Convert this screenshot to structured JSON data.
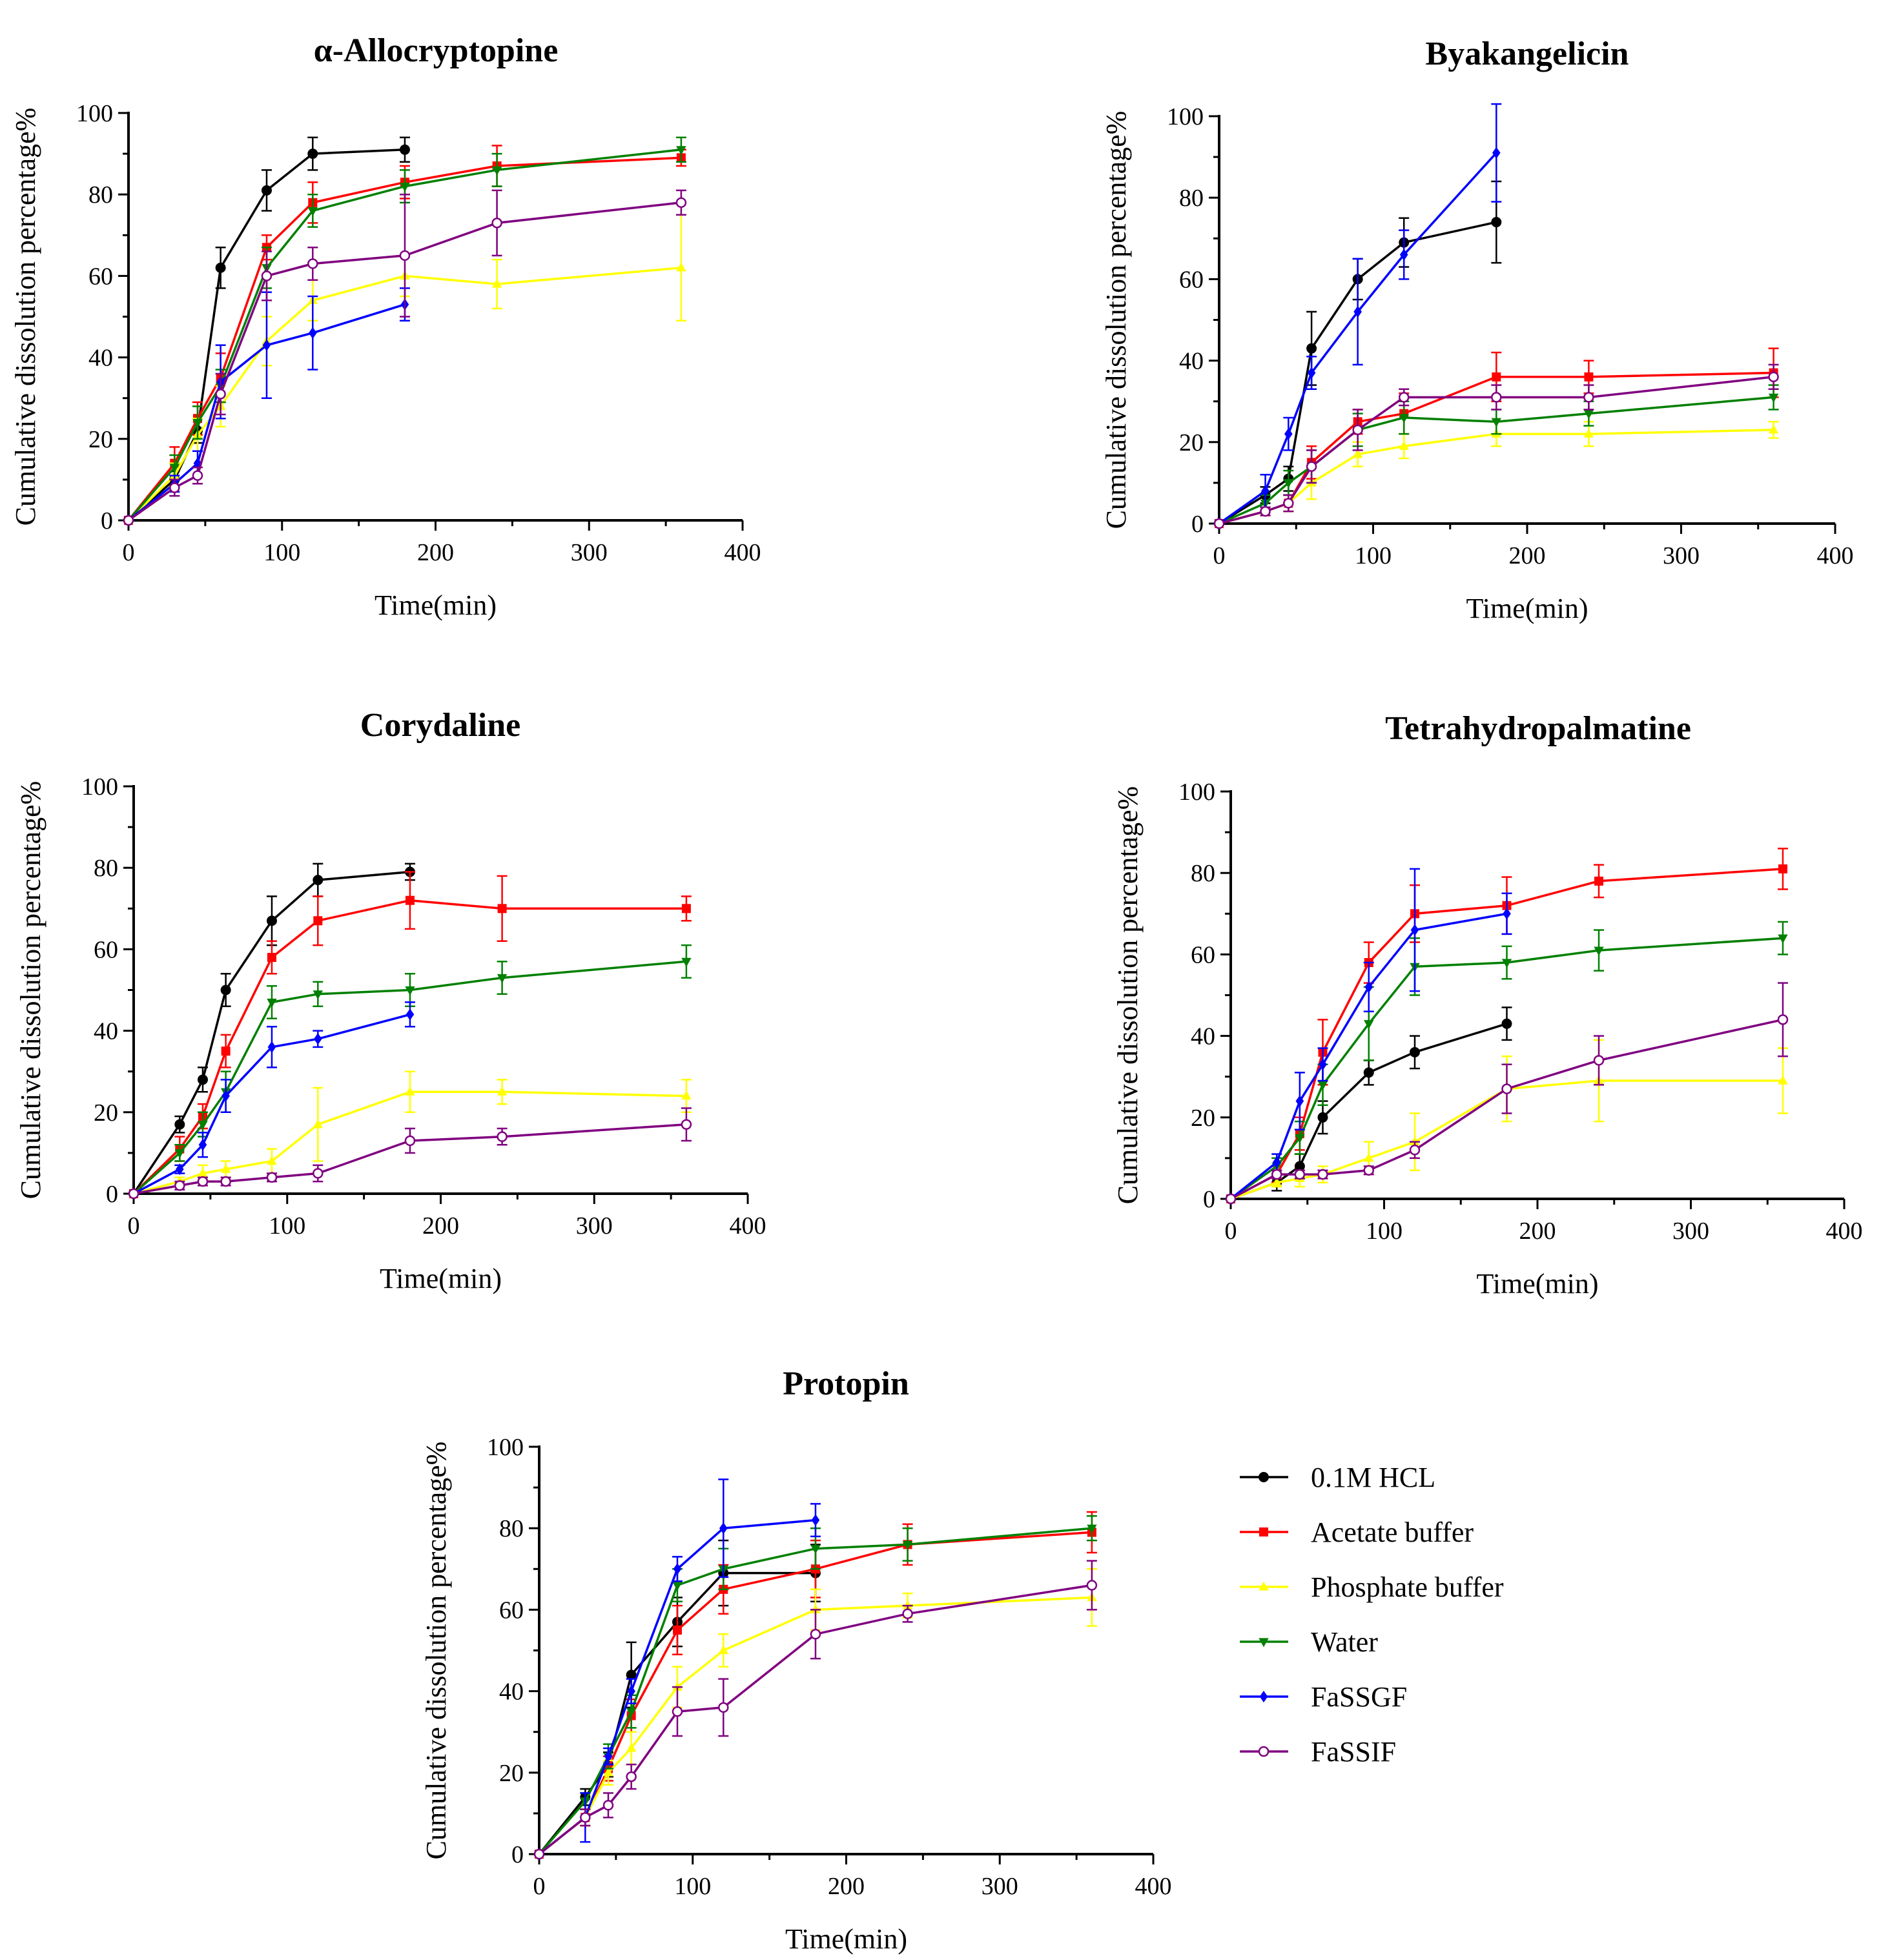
{
  "legend": {
    "items": [
      {
        "label": "0.1M HCL",
        "color": "#000000",
        "marker": "circle-filled"
      },
      {
        "label": "Acetate buffer",
        "color": "#ff0000",
        "marker": "square"
      },
      {
        "label": "Phosphate buffer",
        "color": "#ffff00",
        "marker": "triangle-up"
      },
      {
        "label": "Water",
        "color": "#008000",
        "marker": "triangle-down"
      },
      {
        "label": "FaSSGF",
        "color": "#0000ff",
        "marker": "diamond"
      },
      {
        "label": "FaSSIF",
        "color": "#800080",
        "marker": "circle-open"
      }
    ]
  },
  "chart_data": [
    {
      "type": "line",
      "title": "α-Allocryptopine",
      "xlabel": "Time(min)",
      "ylabel": "Cumulative dissolution percentage%",
      "xlim": [
        0,
        400
      ],
      "ylim": [
        0,
        100
      ],
      "xticks": [
        "0",
        "100",
        "200",
        "300",
        "400"
      ],
      "yticks": [
        "0",
        "20",
        "40",
        "60",
        "80",
        "100"
      ],
      "series": [
        {
          "name": "0.1M HCL",
          "x": [
            0,
            30,
            45,
            60,
            90,
            120,
            180
          ],
          "y": [
            0,
            10,
            22,
            62,
            81,
            90,
            91
          ],
          "err": [
            0,
            2,
            3,
            5,
            5,
            4,
            3
          ]
        },
        {
          "name": "Acetate buffer",
          "x": [
            0,
            30,
            45,
            60,
            90,
            120,
            180,
            240,
            360
          ],
          "y": [
            0,
            14,
            25,
            35,
            67,
            78,
            83,
            87,
            89
          ],
          "err": [
            0,
            4,
            4,
            6,
            3,
            5,
            4,
            5,
            2
          ]
        },
        {
          "name": "Phosphate buffer",
          "x": [
            0,
            30,
            45,
            60,
            90,
            120,
            180,
            240,
            360
          ],
          "y": [
            0,
            11,
            21,
            28,
            44,
            54,
            60,
            58,
            62
          ],
          "err": [
            0,
            3,
            4,
            5,
            6,
            5,
            5,
            6,
            13
          ]
        },
        {
          "name": "Water",
          "x": [
            0,
            30,
            45,
            60,
            90,
            120,
            180,
            240,
            360
          ],
          "y": [
            0,
            13,
            24,
            33,
            62,
            76,
            82,
            86,
            91
          ],
          "err": [
            0,
            3,
            4,
            4,
            5,
            4,
            4,
            4,
            3
          ]
        },
        {
          "name": "FaSSGF",
          "x": [
            0,
            30,
            45,
            60,
            90,
            120,
            180
          ],
          "y": [
            0,
            9,
            14,
            34,
            43,
            46,
            53
          ],
          "err": [
            0,
            2,
            3,
            9,
            13,
            9,
            4
          ]
        },
        {
          "name": "FaSSIF",
          "x": [
            0,
            30,
            45,
            60,
            90,
            120,
            180,
            240,
            360
          ],
          "y": [
            0,
            8,
            11,
            31,
            60,
            63,
            65,
            73,
            78
          ],
          "err": [
            0,
            2,
            2,
            5,
            6,
            4,
            15,
            8,
            3
          ]
        }
      ]
    },
    {
      "type": "line",
      "title": "Byakangelicin",
      "xlabel": "Time(min)",
      "ylabel": "Cumulative dissolution percentage%",
      "xlim": [
        0,
        400
      ],
      "ylim": [
        0,
        100
      ],
      "xticks": [
        "0",
        "100",
        "200",
        "300",
        "400"
      ],
      "yticks": [
        "0",
        "20",
        "40",
        "60",
        "80",
        "100"
      ],
      "series": [
        {
          "name": "0.1M HCL",
          "x": [
            0,
            30,
            45,
            60,
            90,
            120,
            180
          ],
          "y": [
            0,
            7,
            11,
            43,
            60,
            69,
            74
          ],
          "err": [
            0,
            2,
            3,
            9,
            5,
            6,
            10
          ]
        },
        {
          "name": "Acetate buffer",
          "x": [
            0,
            30,
            45,
            60,
            90,
            120,
            180,
            240,
            360
          ],
          "y": [
            0,
            3,
            5,
            15,
            25,
            27,
            36,
            36,
            37
          ],
          "err": [
            0,
            1,
            2,
            4,
            3,
            5,
            6,
            4,
            6
          ]
        },
        {
          "name": "Phosphate buffer",
          "x": [
            0,
            30,
            45,
            60,
            90,
            120,
            180,
            240,
            360
          ],
          "y": [
            0,
            3,
            5,
            10,
            17,
            19,
            22,
            22,
            23
          ],
          "err": [
            0,
            1,
            2,
            4,
            3,
            3,
            3,
            3,
            2
          ]
        },
        {
          "name": "Water",
          "x": [
            0,
            30,
            45,
            60,
            90,
            120,
            180,
            240,
            360
          ],
          "y": [
            0,
            5,
            10,
            14,
            23,
            26,
            25,
            27,
            31
          ],
          "err": [
            0,
            2,
            3,
            4,
            4,
            4,
            3,
            3,
            3
          ]
        },
        {
          "name": "FaSSGF",
          "x": [
            0,
            30,
            45,
            60,
            90,
            120,
            180
          ],
          "y": [
            0,
            8,
            22,
            37,
            52,
            66,
            91
          ],
          "err": [
            0,
            4,
            4,
            4,
            13,
            6,
            12
          ]
        },
        {
          "name": "FaSSIF",
          "x": [
            0,
            30,
            45,
            60,
            90,
            120,
            180,
            240,
            360
          ],
          "y": [
            0,
            3,
            5,
            14,
            23,
            31,
            31,
            31,
            36
          ],
          "err": [
            0,
            1,
            2,
            4,
            5,
            2,
            3,
            3,
            3
          ]
        }
      ]
    },
    {
      "type": "line",
      "title": "Corydaline",
      "xlabel": "Time(min)",
      "ylabel": "Cumulative dissolution percentage%",
      "xlim": [
        0,
        400
      ],
      "ylim": [
        0,
        100
      ],
      "xticks": [
        "0",
        "100",
        "200",
        "300",
        "400"
      ],
      "yticks": [
        "0",
        "20",
        "40",
        "60",
        "80",
        "100"
      ],
      "series": [
        {
          "name": "0.1M HCL",
          "x": [
            0,
            30,
            45,
            60,
            90,
            120,
            180
          ],
          "y": [
            0,
            17,
            28,
            50,
            67,
            77,
            79
          ],
          "err": [
            0,
            2,
            3,
            4,
            6,
            4,
            2
          ]
        },
        {
          "name": "Acetate buffer",
          "x": [
            0,
            30,
            45,
            60,
            90,
            120,
            180,
            240,
            360
          ],
          "y": [
            0,
            11,
            19,
            35,
            58,
            67,
            72,
            70,
            70
          ],
          "err": [
            0,
            3,
            3,
            4,
            4,
            6,
            7,
            8,
            3
          ]
        },
        {
          "name": "Phosphate buffer",
          "x": [
            0,
            30,
            45,
            60,
            90,
            120,
            180,
            240,
            360
          ],
          "y": [
            0,
            3,
            5,
            6,
            8,
            17,
            25,
            25,
            24
          ],
          "err": [
            0,
            1,
            2,
            2,
            3,
            9,
            5,
            3,
            4
          ]
        },
        {
          "name": "Water",
          "x": [
            0,
            30,
            45,
            60,
            90,
            120,
            180,
            240,
            360
          ],
          "y": [
            0,
            10,
            17,
            25,
            47,
            49,
            50,
            53,
            57
          ],
          "err": [
            0,
            2,
            3,
            5,
            4,
            3,
            4,
            4,
            4
          ]
        },
        {
          "name": "FaSSGF",
          "x": [
            0,
            30,
            45,
            60,
            90,
            120,
            180
          ],
          "y": [
            0,
            6,
            12,
            24,
            36,
            38,
            44
          ],
          "err": [
            0,
            1,
            3,
            4,
            5,
            2,
            3
          ]
        },
        {
          "name": "FaSSIF",
          "x": [
            0,
            30,
            45,
            60,
            90,
            120,
            180,
            240,
            360
          ],
          "y": [
            0,
            2,
            3,
            3,
            4,
            5,
            13,
            14,
            17
          ],
          "err": [
            0,
            1,
            1,
            1,
            1,
            2,
            3,
            2,
            4
          ]
        }
      ]
    },
    {
      "type": "line",
      "title": "Tetrahydropalmatine",
      "xlabel": "Time(min)",
      "ylabel": "Cumulative dissolution percentage%",
      "xlim": [
        0,
        400
      ],
      "ylim": [
        0,
        100
      ],
      "xticks": [
        "0",
        "100",
        "200",
        "300",
        "400"
      ],
      "yticks": [
        "0",
        "20",
        "40",
        "60",
        "80",
        "100"
      ],
      "series": [
        {
          "name": "0.1M HCL",
          "x": [
            0,
            30,
            45,
            60,
            90,
            120,
            180
          ],
          "y": [
            0,
            4,
            8,
            20,
            31,
            36,
            43
          ],
          "err": [
            0,
            2,
            3,
            4,
            3,
            4,
            4
          ]
        },
        {
          "name": "Acetate buffer",
          "x": [
            0,
            30,
            45,
            60,
            90,
            120,
            180,
            240,
            360
          ],
          "y": [
            0,
            6,
            16,
            36,
            58,
            70,
            72,
            78,
            81
          ],
          "err": [
            0,
            2,
            4,
            8,
            5,
            7,
            7,
            4,
            5
          ]
        },
        {
          "name": "Phosphate buffer",
          "x": [
            0,
            30,
            45,
            60,
            90,
            120,
            180,
            240,
            360
          ],
          "y": [
            0,
            4,
            5,
            6,
            10,
            14,
            27,
            29,
            29
          ],
          "err": [
            0,
            1,
            2,
            2,
            4,
            7,
            8,
            10,
            8
          ]
        },
        {
          "name": "Water",
          "x": [
            0,
            30,
            45,
            60,
            90,
            120,
            180,
            240,
            360
          ],
          "y": [
            0,
            8,
            15,
            28,
            43,
            57,
            58,
            61,
            64
          ],
          "err": [
            0,
            2,
            4,
            5,
            9,
            7,
            4,
            5,
            4
          ]
        },
        {
          "name": "FaSSGF",
          "x": [
            0,
            30,
            45,
            60,
            90,
            120,
            180
          ],
          "y": [
            0,
            9,
            24,
            33,
            52,
            66,
            70
          ],
          "err": [
            0,
            2,
            7,
            4,
            6,
            15,
            5
          ]
        },
        {
          "name": "FaSSIF",
          "x": [
            0,
            30,
            45,
            60,
            90,
            120,
            180,
            240,
            360
          ],
          "y": [
            0,
            6,
            6,
            6,
            7,
            12,
            27,
            34,
            44
          ],
          "err": [
            0,
            1,
            1,
            1,
            1,
            2,
            6,
            6,
            9
          ]
        }
      ]
    },
    {
      "type": "line",
      "title": "Protopin",
      "xlabel": "Time(min)",
      "ylabel": "Cumulative dissolution percentage%",
      "xlim": [
        0,
        400
      ],
      "ylim": [
        0,
        100
      ],
      "xticks": [
        "0",
        "100",
        "200",
        "300",
        "400"
      ],
      "yticks": [
        "0",
        "20",
        "40",
        "60",
        "80",
        "100"
      ],
      "series": [
        {
          "name": "0.1M HCL",
          "x": [
            0,
            30,
            45,
            60,
            90,
            120,
            180
          ],
          "y": [
            0,
            14,
            22,
            44,
            57,
            69,
            69
          ],
          "err": [
            0,
            2,
            3,
            8,
            6,
            8,
            7
          ]
        },
        {
          "name": "Acetate buffer",
          "x": [
            0,
            30,
            45,
            60,
            90,
            120,
            180,
            240,
            360
          ],
          "y": [
            0,
            9,
            21,
            34,
            55,
            65,
            70,
            76,
            79
          ],
          "err": [
            0,
            2,
            3,
            4,
            6,
            6,
            7,
            5,
            5
          ]
        },
        {
          "name": "Phosphate buffer",
          "x": [
            0,
            30,
            45,
            60,
            90,
            120,
            180,
            240,
            360
          ],
          "y": [
            0,
            9,
            20,
            26,
            41,
            50,
            60,
            61,
            63
          ],
          "err": [
            0,
            2,
            3,
            4,
            5,
            4,
            5,
            3,
            7
          ]
        },
        {
          "name": "Water",
          "x": [
            0,
            30,
            45,
            60,
            90,
            120,
            180,
            240,
            360
          ],
          "y": [
            0,
            13,
            24,
            35,
            66,
            70,
            75,
            76,
            80
          ],
          "err": [
            0,
            2,
            3,
            4,
            4,
            5,
            5,
            4,
            3
          ]
        },
        {
          "name": "FaSSGF",
          "x": [
            0,
            30,
            45,
            60,
            90,
            120,
            180
          ],
          "y": [
            0,
            9,
            24,
            40,
            70,
            80,
            82
          ],
          "err": [
            0,
            6,
            2,
            3,
            3,
            12,
            4
          ]
        },
        {
          "name": "FaSSIF",
          "x": [
            0,
            30,
            45,
            60,
            90,
            120,
            180,
            240,
            360
          ],
          "y": [
            0,
            9,
            12,
            19,
            35,
            36,
            54,
            59,
            66
          ],
          "err": [
            0,
            2,
            3,
            3,
            6,
            7,
            6,
            2,
            6
          ]
        }
      ]
    }
  ]
}
